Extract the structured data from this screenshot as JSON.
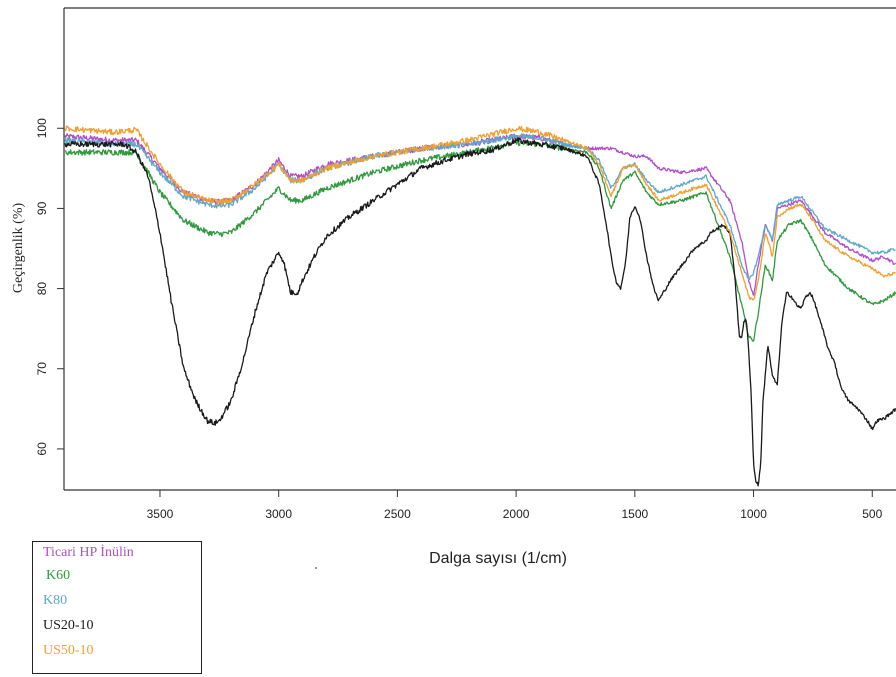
{
  "chart_data": {
    "type": "line",
    "xlabel": "Dalga sayısı (1/cm)",
    "ylabel": "Geçirgenlik (%)",
    "xlim": [
      3900,
      400
    ],
    "x_reversed": true,
    "ylim": [
      55,
      115
    ],
    "x_ticks": [
      3500,
      3000,
      2500,
      2000,
      1500,
      1000,
      500
    ],
    "y_ticks": [
      60,
      70,
      80,
      90,
      100
    ],
    "grid": false,
    "legend_position": "bottom-left, outside plot",
    "series": [
      {
        "name": "Ticari HP İnülin",
        "color": "#b050c8",
        "x": [
          3900,
          3700,
          3600,
          3500,
          3400,
          3300,
          3250,
          3200,
          3100,
          3000,
          2950,
          2900,
          2800,
          2600,
          2400,
          2200,
          2000,
          1900,
          1800,
          1700,
          1650,
          1600,
          1550,
          1500,
          1450,
          1400,
          1300,
          1200,
          1150,
          1100,
          1050,
          1020,
          1000,
          980,
          950,
          920,
          900,
          850,
          800,
          750,
          700,
          600,
          500,
          450,
          400
        ],
        "y": [
          99,
          98.5,
          98.5,
          95,
          92,
          91,
          90.8,
          91,
          93,
          96,
          94,
          94,
          95.5,
          96.5,
          97.5,
          98,
          99,
          98.8,
          98,
          97.5,
          97.5,
          97.5,
          97,
          96.5,
          96.5,
          95,
          94.5,
          95,
          93,
          91,
          86,
          81,
          79,
          83,
          88,
          86,
          90,
          90.5,
          91,
          89,
          87,
          85,
          83.5,
          84,
          83
        ]
      },
      {
        "name": "K60",
        "color": "#2e9a3c",
        "x": [
          3900,
          3700,
          3600,
          3500,
          3400,
          3300,
          3250,
          3200,
          3100,
          3000,
          2950,
          2900,
          2800,
          2600,
          2400,
          2200,
          2000,
          1900,
          1800,
          1700,
          1650,
          1600,
          1550,
          1500,
          1450,
          1400,
          1300,
          1200,
          1150,
          1100,
          1050,
          1020,
          1000,
          980,
          950,
          920,
          900,
          850,
          800,
          750,
          700,
          600,
          500,
          450,
          400
        ],
        "y": [
          97,
          97,
          97,
          92,
          88.5,
          87,
          86.8,
          87,
          89.5,
          92.5,
          91,
          91,
          92.5,
          94.5,
          96,
          97,
          98.2,
          98,
          97.5,
          97,
          95,
          90,
          93.5,
          94.5,
          92,
          90.5,
          91,
          92,
          88,
          84,
          78,
          74,
          73.5,
          77,
          83,
          81,
          86,
          88,
          88.5,
          86,
          83,
          80,
          78,
          78.5,
          79.5
        ]
      },
      {
        "name": "K80",
        "color": "#5fa8c8",
        "x": [
          3900,
          3700,
          3600,
          3500,
          3400,
          3300,
          3250,
          3200,
          3100,
          3000,
          2950,
          2900,
          2800,
          2600,
          2400,
          2200,
          2000,
          1900,
          1800,
          1700,
          1650,
          1600,
          1550,
          1500,
          1450,
          1400,
          1300,
          1200,
          1150,
          1100,
          1050,
          1020,
          1000,
          980,
          950,
          920,
          900,
          850,
          800,
          750,
          700,
          600,
          500,
          450,
          400
        ],
        "y": [
          98.5,
          98,
          98,
          94.5,
          91.5,
          90.5,
          90.3,
          90.5,
          92.5,
          95.5,
          93.5,
          93.5,
          95,
          96.5,
          97.5,
          98,
          99,
          98.8,
          98,
          97.5,
          96,
          92.5,
          95,
          95.5,
          93.5,
          92,
          93,
          94,
          91,
          88,
          83,
          81,
          82,
          84,
          88,
          86,
          90.5,
          91,
          91.5,
          89.5,
          87.5,
          86,
          84.5,
          84.5,
          85
        ]
      },
      {
        "name": "US20-10",
        "color": "#1a1a1a",
        "x": [
          3900,
          3700,
          3650,
          3600,
          3550,
          3500,
          3450,
          3400,
          3350,
          3300,
          3270,
          3250,
          3200,
          3150,
          3100,
          3050,
          3000,
          2980,
          2950,
          2920,
          2900,
          2850,
          2800,
          2700,
          2600,
          2500,
          2400,
          2300,
          2200,
          2100,
          2000,
          1900,
          1800,
          1750,
          1700,
          1650,
          1620,
          1600,
          1580,
          1560,
          1540,
          1520,
          1500,
          1480,
          1450,
          1420,
          1400,
          1350,
          1300,
          1250,
          1200,
          1180,
          1150,
          1130,
          1100,
          1080,
          1060,
          1050,
          1040,
          1030,
          1020,
          1010,
          1000,
          990,
          980,
          970,
          960,
          940,
          920,
          900,
          880,
          860,
          840,
          820,
          800,
          780,
          760,
          740,
          720,
          700,
          680,
          660,
          640,
          620,
          600,
          560,
          520,
          500,
          480,
          450,
          420,
          400
        ],
        "y": [
          98,
          98,
          98,
          97,
          94,
          87,
          78,
          70,
          66,
          63.5,
          63.2,
          63.5,
          66,
          71,
          77,
          82,
          84.5,
          83.5,
          79.5,
          79.5,
          81,
          84,
          86.5,
          89,
          91,
          93,
          95,
          96,
          96.8,
          97.3,
          98.5,
          98,
          97.5,
          97,
          96.5,
          93,
          88,
          84,
          81,
          80,
          83,
          89,
          90.3,
          89,
          84,
          80,
          78.5,
          81,
          83,
          85,
          86,
          87,
          87.5,
          88,
          87,
          82,
          74,
          74,
          76,
          76,
          72,
          67,
          58,
          56,
          55.5,
          58,
          66,
          73,
          69,
          68,
          76,
          79.5,
          79,
          78,
          77.5,
          79,
          79.5,
          78,
          76,
          74,
          72,
          71,
          68.5,
          67,
          66,
          65,
          63.5,
          62.5,
          63.5,
          63.8,
          64.5,
          65
        ]
      },
      {
        "name": "US50-10",
        "color": "#f0a030",
        "x": [
          3900,
          3700,
          3600,
          3500,
          3400,
          3300,
          3250,
          3200,
          3100,
          3000,
          2950,
          2900,
          2800,
          2600,
          2400,
          2200,
          2000,
          1900,
          1800,
          1700,
          1650,
          1600,
          1550,
          1500,
          1450,
          1400,
          1300,
          1200,
          1150,
          1100,
          1050,
          1020,
          1000,
          980,
          950,
          920,
          900,
          850,
          800,
          750,
          700,
          600,
          500,
          450,
          400
        ],
        "y": [
          100,
          99.5,
          99.8,
          95.5,
          92,
          91,
          90.8,
          91,
          93,
          95.5,
          93.5,
          93.5,
          95,
          96.5,
          97.5,
          98.5,
          100,
          99.5,
          98.5,
          97.5,
          95.5,
          91.5,
          95,
          95.5,
          93,
          91,
          92,
          93,
          90,
          87,
          82,
          79,
          78.5,
          81,
          87,
          84,
          89,
          90,
          90.5,
          88.5,
          86,
          84,
          82.5,
          81.5,
          82
        ]
      }
    ]
  }
}
